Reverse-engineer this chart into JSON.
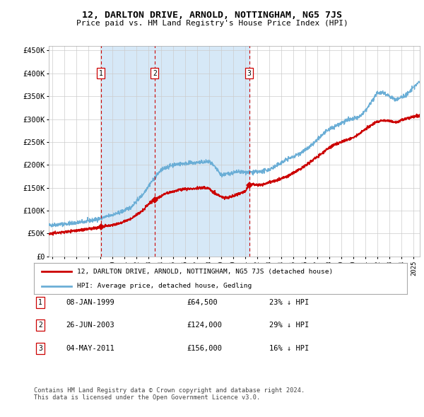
{
  "title": "12, DARLTON DRIVE, ARNOLD, NOTTINGHAM, NG5 7JS",
  "subtitle": "Price paid vs. HM Land Registry's House Price Index (HPI)",
  "legend_line1": "12, DARLTON DRIVE, ARNOLD, NOTTINGHAM, NG5 7JS (detached house)",
  "legend_line2": "HPI: Average price, detached house, Gedling",
  "footer1": "Contains HM Land Registry data © Crown copyright and database right 2024.",
  "footer2": "This data is licensed under the Open Government Licence v3.0.",
  "transactions": [
    {
      "num": 1,
      "date": "08-JAN-1999",
      "price": 64500,
      "pct": "23% ↓ HPI",
      "year_x": 1999.03
    },
    {
      "num": 2,
      "date": "26-JUN-2003",
      "price": 124000,
      "pct": "29% ↓ HPI",
      "year_x": 2003.49
    },
    {
      "num": 3,
      "date": "04-MAY-2011",
      "price": 156000,
      "pct": "16% ↓ HPI",
      "year_x": 2011.34
    }
  ],
  "hpi_color": "#6baed6",
  "price_color": "#cc0000",
  "vline_color": "#cc0000",
  "shade_color": "#d6e8f7",
  "dot_color": "#cc0000",
  "ylim": [
    0,
    460000
  ],
  "xlim_start": 1994.7,
  "xlim_end": 2025.5,
  "yticks": [
    0,
    50000,
    100000,
    150000,
    200000,
    250000,
    300000,
    350000,
    400000,
    450000
  ],
  "ytick_labels": [
    "£0",
    "£50K",
    "£100K",
    "£150K",
    "£200K",
    "£250K",
    "£300K",
    "£350K",
    "£400K",
    "£450K"
  ],
  "xtick_years": [
    1995,
    1996,
    1997,
    1998,
    1999,
    2000,
    2001,
    2002,
    2003,
    2004,
    2005,
    2006,
    2007,
    2008,
    2009,
    2010,
    2011,
    2012,
    2013,
    2014,
    2015,
    2016,
    2017,
    2018,
    2019,
    2020,
    2021,
    2022,
    2023,
    2024,
    2025
  ]
}
